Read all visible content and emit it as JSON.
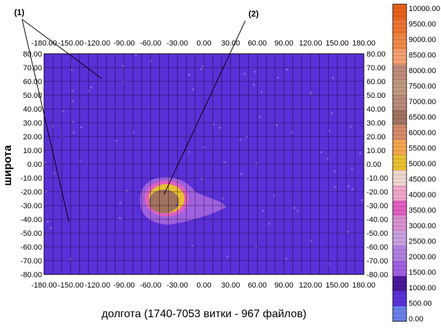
{
  "chart_data": {
    "type": "heatmap",
    "title": "",
    "xlabel": "долгота (1740-7053 витки - 967 файлов)",
    "ylabel": "широта",
    "xlim": [
      -180,
      180
    ],
    "ylim": [
      -80,
      80
    ],
    "x_ticks": [
      "-180.00",
      "-150.00",
      "-120.00",
      "-90.00",
      "-60.00",
      "-30.00",
      "0.00",
      "30.00",
      "60.00",
      "90.00",
      "120.00",
      "150.00",
      "180.00"
    ],
    "y_ticks": [
      "80.00",
      "70.00",
      "60.00",
      "50.00",
      "40.00",
      "30.00",
      "20.00",
      "10.00",
      "0.00",
      "-10.00",
      "-20.00",
      "-30.00",
      "-40.00",
      "-50.00",
      "-60.00",
      "-70.00",
      "-80.00"
    ],
    "grid": true,
    "colorbar": {
      "min": 0,
      "max": 10000,
      "labels": [
        "10000.00",
        "9500.00",
        "9000.00",
        "8500.00",
        "8000.00",
        "7500.00",
        "7000.00",
        "6500.00",
        "6000.00",
        "5500.00",
        "5000.00",
        "4500.00",
        "4000.00",
        "3500.00",
        "3000.00",
        "2500.00",
        "2000.00",
        "1500.00",
        "1000.00",
        "500.00",
        "0.00"
      ],
      "colors_top_to_bottom": [
        "#e8601c",
        "#ec7432",
        "#f08848",
        "#f5a070",
        "#c08a78",
        "#c0997f",
        "#b98a7a",
        "#a0735f",
        "#d68a6a",
        "#f2a650",
        "#e8c030",
        "#f0d8d0",
        "#f0a8c8",
        "#e060c0",
        "#d890d0",
        "#c8a0e0",
        "#b080e0",
        "#a060e0",
        "#4a1898",
        "#5a30d8",
        "#6a80e8"
      ]
    },
    "annotations": [
      {
        "label": "(1)",
        "description": "high-latitude bands with elevated counts (~500) above about 55N and below about 45S"
      },
      {
        "label": "(2)",
        "description": "South Atlantic Anomaly maximum near 45W 25S"
      }
    ],
    "regions": [
      {
        "name": "background",
        "value": 250
      },
      {
        "name": "north-band",
        "lat_min": 55,
        "value": 600
      },
      {
        "name": "south-band",
        "lat_max": -45,
        "value": 600
      },
      {
        "name": "saa-outer",
        "center": [
          -40,
          -25
        ],
        "value": 1500
      },
      {
        "name": "saa-mid",
        "center": [
          -42,
          -25
        ],
        "value": 3500
      },
      {
        "name": "saa-core",
        "center": [
          -45,
          -27
        ],
        "value": 6500
      }
    ]
  }
}
